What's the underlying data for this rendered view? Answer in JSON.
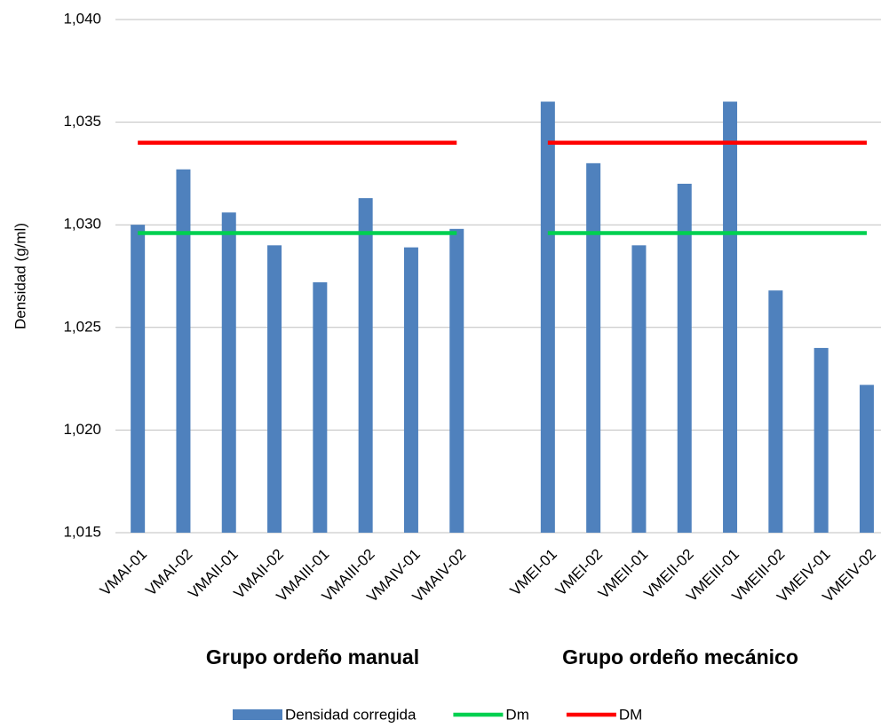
{
  "chart_data": {
    "type": "bar",
    "y_label": "Densidad (g/ml)",
    "group_labels": [
      "Grupo ordeño manual",
      "Grupo ordeño mecánico"
    ],
    "categories": [
      "VMAI-01",
      "VMAI-02",
      "VMAII-01",
      "VMAII-02",
      "VMAIII-01",
      "VMAIII-02",
      "VMAIV-01",
      "VMAIV-02",
      null,
      "VMEI-01",
      "VMEI-02",
      "VMEII-01",
      "VMEII-02",
      "VMEIII-01",
      "VMEIII-02",
      "VMEIV-01",
      "VMEIV-02"
    ],
    "series": [
      {
        "name": "Densidad corregida",
        "type": "bar",
        "color": "#4f81bd",
        "values": [
          1.03,
          1.0327,
          1.0306,
          1.029,
          1.0272,
          1.0313,
          1.0289,
          1.0298,
          null,
          1.036,
          1.033,
          1.029,
          1.032,
          1.036,
          1.0268,
          1.024,
          1.0222
        ]
      },
      {
        "name": "Dm",
        "type": "line",
        "color": "#00d050",
        "values": [
          1.0296,
          1.0296,
          1.0296,
          1.0296,
          1.0296,
          1.0296,
          1.0296,
          1.0296,
          null,
          1.0296,
          1.0296,
          1.0296,
          1.0296,
          1.0296,
          1.0296,
          1.0296,
          1.0296
        ]
      },
      {
        "name": "DM",
        "type": "line",
        "color": "#ff0000",
        "values": [
          1.034,
          1.034,
          1.034,
          1.034,
          1.034,
          1.034,
          1.034,
          1.034,
          null,
          1.034,
          1.034,
          1.034,
          1.034,
          1.034,
          1.034,
          1.034,
          1.034
        ]
      }
    ],
    "ylim": [
      1.015,
      1.04
    ],
    "yticks": [
      {
        "value": 1.015,
        "label": "1,015"
      },
      {
        "value": 1.02,
        "label": "1,020"
      },
      {
        "value": 1.025,
        "label": "1,025"
      },
      {
        "value": 1.03,
        "label": "1,030"
      },
      {
        "value": 1.035,
        "label": "1,035"
      },
      {
        "value": 1.04,
        "label": "1,040"
      }
    ],
    "grid": true,
    "legend": "bottom"
  }
}
